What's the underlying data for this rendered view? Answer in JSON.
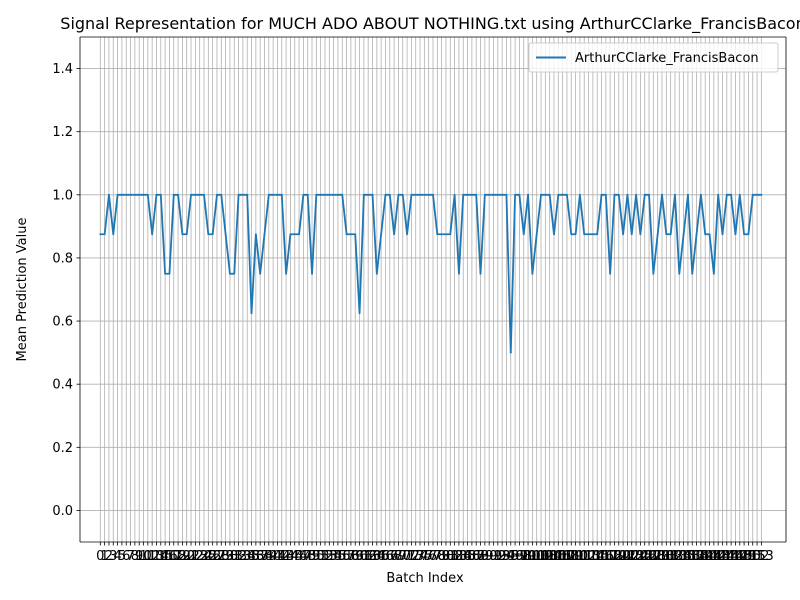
{
  "chart_data": {
    "type": "line",
    "title": "Signal Representation for MUCH ADO ABOUT NOTHING.txt using ArthurCClarke_FrancisBacon",
    "xlabel": "Batch Index",
    "ylabel": "Mean Prediction Value",
    "ylim": [
      -0.1,
      1.5
    ],
    "xlim": [
      -4.7,
      158.7
    ],
    "yticks": [
      0.0,
      0.2,
      0.4,
      0.6,
      0.8,
      1.0,
      1.2,
      1.4
    ],
    "ytick_labels": [
      "0.0",
      "0.2",
      "0.4",
      "0.6",
      "0.8",
      "1.0",
      "1.2",
      "1.4"
    ],
    "x_tick_step": 1,
    "x_tick_label_count": 154,
    "grid": true,
    "legend": "top-right",
    "series": [
      {
        "name": "ArthurCClarke_FrancisBacon",
        "color": "#1f77b4",
        "x": [
          0,
          1,
          2,
          3,
          4,
          5,
          6,
          7,
          8,
          9,
          10,
          11,
          12,
          13,
          14,
          15,
          16,
          17,
          18,
          19,
          20,
          21,
          22,
          23,
          24,
          25,
          26,
          27,
          28,
          29,
          30,
          31,
          32,
          33,
          34,
          35,
          36,
          37,
          38,
          39,
          40,
          41,
          42,
          43,
          44,
          45,
          46,
          47,
          48,
          49,
          50,
          51,
          52,
          53,
          54,
          55,
          56,
          57,
          58,
          59,
          60,
          61,
          62,
          63,
          64,
          65,
          66,
          67,
          68,
          69,
          70,
          71,
          72,
          73,
          74,
          75,
          76,
          77,
          78,
          79,
          80,
          81,
          82,
          83,
          84,
          85,
          86,
          87,
          88,
          89,
          90,
          91,
          92,
          93,
          94,
          95,
          96,
          97,
          98,
          99,
          100,
          101,
          102,
          103,
          104,
          105,
          106,
          107,
          108,
          109,
          110,
          111,
          112,
          113,
          114,
          115,
          116,
          117,
          118,
          119,
          120,
          121,
          122,
          123,
          124,
          125,
          126,
          127,
          128,
          129,
          130,
          131,
          132,
          133,
          134,
          135,
          136,
          137,
          138,
          139,
          140,
          141,
          142,
          143,
          144,
          145,
          146,
          147,
          148,
          149,
          150,
          151,
          152,
          153
        ],
        "values": [
          0.875,
          0.875,
          1.0,
          0.875,
          1.0,
          1.0,
          1.0,
          1.0,
          1.0,
          1.0,
          1.0,
          1.0,
          0.875,
          1.0,
          1.0,
          0.75,
          0.75,
          1.0,
          1.0,
          0.875,
          0.875,
          1.0,
          1.0,
          1.0,
          1.0,
          0.875,
          0.875,
          1.0,
          1.0,
          0.875,
          0.75,
          0.75,
          1.0,
          1.0,
          1.0,
          0.625,
          0.875,
          0.75,
          0.875,
          1.0,
          1.0,
          1.0,
          1.0,
          0.75,
          0.875,
          0.875,
          0.875,
          1.0,
          1.0,
          0.75,
          1.0,
          1.0,
          1.0,
          1.0,
          1.0,
          1.0,
          1.0,
          0.875,
          0.875,
          0.875,
          0.625,
          1.0,
          1.0,
          1.0,
          0.75,
          0.875,
          1.0,
          1.0,
          0.875,
          1.0,
          1.0,
          0.875,
          1.0,
          1.0,
          1.0,
          1.0,
          1.0,
          1.0,
          0.875,
          0.875,
          0.875,
          0.875,
          1.0,
          0.75,
          1.0,
          1.0,
          1.0,
          1.0,
          0.75,
          1.0,
          1.0,
          1.0,
          1.0,
          1.0,
          1.0,
          0.5,
          1.0,
          1.0,
          0.875,
          1.0,
          0.75,
          0.875,
          1.0,
          1.0,
          1.0,
          0.875,
          1.0,
          1.0,
          1.0,
          0.875,
          0.875,
          1.0,
          0.875,
          0.875,
          0.875,
          0.875,
          1.0,
          1.0,
          0.75,
          1.0,
          1.0,
          0.875,
          1.0,
          0.875,
          1.0,
          0.875,
          1.0,
          1.0,
          0.75,
          0.875,
          1.0,
          0.875,
          0.875,
          1.0,
          0.75,
          0.875,
          1.0,
          0.75,
          0.875,
          1.0,
          0.875,
          0.875,
          0.75,
          1.0,
          0.875,
          1.0,
          1.0,
          0.875,
          1.0,
          0.875,
          0.875,
          1.0,
          1.0,
          1.0
        ]
      }
    ]
  }
}
